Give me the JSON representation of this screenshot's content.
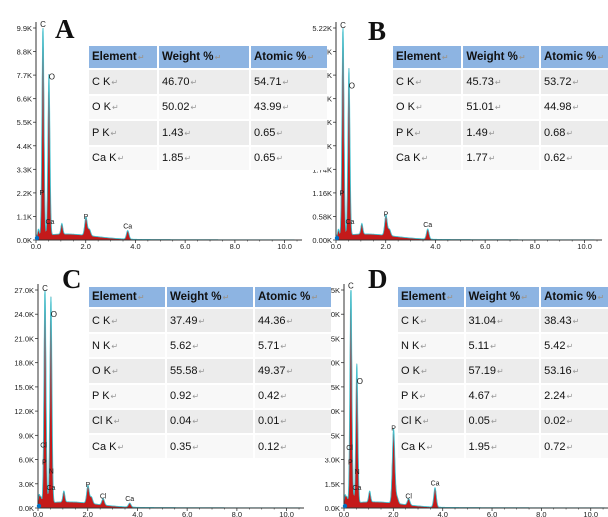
{
  "chart_data": [
    {
      "type": "line",
      "panel_label": "A",
      "xlabel": "",
      "ylabel": "",
      "xlim": [
        0,
        10.7
      ],
      "ylim": [
        0,
        9.9
      ],
      "x_ticks": [
        "0.0",
        "2.0",
        "4.0",
        "6.0",
        "8.0",
        "10.0"
      ],
      "y_ticks": [
        "0.0K",
        "1.1K",
        "2.2K",
        "3.3K",
        "4.4K",
        "5.5K",
        "6.6K",
        "7.7K",
        "8.8K",
        "9.9K"
      ],
      "peaks": [
        {
          "label": "C",
          "x": 0.28,
          "y": 9.8
        },
        {
          "label": "O",
          "x": 0.52,
          "y": 7.5
        },
        {
          "label": "P",
          "x": 2.01,
          "y": 0.85
        },
        {
          "label": "Ca",
          "x": 3.69,
          "y": 0.4
        }
      ],
      "minor_peak_labels": [
        {
          "label": "P",
          "x": 0.1,
          "y": 2.1
        },
        {
          "label": "Ca",
          "x": 0.34,
          "y": 0.75
        }
      ],
      "table": {
        "headers": [
          "Element",
          "Weight %",
          "Atomic %"
        ],
        "rows": [
          [
            "C K",
            "46.70",
            "54.71"
          ],
          [
            "O K",
            "50.02",
            "43.99"
          ],
          [
            "P K",
            "1.43",
            "0.65"
          ],
          [
            "Ca K",
            "1.85",
            "0.65"
          ]
        ]
      }
    },
    {
      "type": "line",
      "panel_label": "B",
      "xlabel": "",
      "ylabel": "",
      "xlim": [
        0,
        10.7
      ],
      "ylim": [
        0,
        5.22
      ],
      "x_ticks": [
        "0.0",
        "2.0",
        "4.0",
        "6.0",
        "8.0",
        "10.0"
      ],
      "y_ticks": [
        "0.00K",
        "0.58K",
        "1.16K",
        "1.74K",
        "2.32K",
        "2.90K",
        "3.48K",
        "4.06K",
        "4.64K",
        "5.22K"
      ],
      "peaks": [
        {
          "label": "C",
          "x": 0.28,
          "y": 5.15
        },
        {
          "label": "O",
          "x": 0.52,
          "y": 4.1
        },
        {
          "label": "P",
          "x": 2.01,
          "y": 0.5
        },
        {
          "label": "Ca",
          "x": 3.69,
          "y": 0.25
        }
      ],
      "minor_peak_labels": [
        {
          "label": "P",
          "x": 0.1,
          "y": 1.1
        },
        {
          "label": "Ca",
          "x": 0.34,
          "y": 0.4
        }
      ],
      "table": {
        "headers": [
          "Element",
          "Weight %",
          "Atomic %"
        ],
        "rows": [
          [
            "C K",
            "45.73",
            "53.72"
          ],
          [
            "O K",
            "51.01",
            "44.98"
          ],
          [
            "P K",
            "1.49",
            "0.68"
          ],
          [
            "Ca K",
            "1.77",
            "0.62"
          ]
        ]
      }
    },
    {
      "type": "line",
      "panel_label": "C",
      "xlabel": "",
      "ylabel": "",
      "xlim": [
        0,
        10.7
      ],
      "ylim": [
        0,
        27
      ],
      "x_ticks": [
        "0.0",
        "2.0",
        "4.0",
        "6.0",
        "8.0",
        "10.0"
      ],
      "y_ticks": [
        "0.0K",
        "3.0K",
        "6.0K",
        "9.0K",
        "12.0K",
        "15.0K",
        "18.0K",
        "21.0K",
        "24.0K",
        "27.0K"
      ],
      "peaks": [
        {
          "label": "C",
          "x": 0.28,
          "y": 26.5
        },
        {
          "label": "O",
          "x": 0.52,
          "y": 25.5
        },
        {
          "label": "P",
          "x": 2.01,
          "y": 2.2
        },
        {
          "label": "Cl",
          "x": 2.62,
          "y": 0.8
        },
        {
          "label": "Ca",
          "x": 3.69,
          "y": 0.5
        }
      ],
      "minor_peak_labels": [
        {
          "label": "Cl",
          "x": 0.05,
          "y": 7.5
        },
        {
          "label": "P",
          "x": 0.12,
          "y": 5.4
        },
        {
          "label": "N",
          "x": 0.39,
          "y": 4.3
        },
        {
          "label": "Ca",
          "x": 0.3,
          "y": 2.2
        }
      ],
      "table": {
        "headers": [
          "Element",
          "Weight %",
          "Atomic %"
        ],
        "rows": [
          [
            "C K",
            "37.49",
            "44.36"
          ],
          [
            "N K",
            "5.62",
            "5.71"
          ],
          [
            "O K",
            "55.58",
            "49.37"
          ],
          [
            "P K",
            "0.92",
            "0.42"
          ],
          [
            "Cl K",
            "0.04",
            "0.01"
          ],
          [
            "Ca K",
            "0.35",
            "0.12"
          ]
        ]
      }
    },
    {
      "type": "line",
      "panel_label": "D",
      "xlabel": "",
      "ylabel": "",
      "xlim": [
        0,
        10.7
      ],
      "ylim": [
        0,
        13.5
      ],
      "x_ticks": [
        "0.0",
        "2.0",
        "4.0",
        "6.0",
        "8.0",
        "10.0"
      ],
      "y_ticks": [
        "0.0K",
        "1.5K",
        "3.0K",
        "4.5K",
        "6.0K",
        "7.5K",
        "9.0K",
        "10.5K",
        "12.0K",
        "13.5K"
      ],
      "peaks": [
        {
          "label": "C",
          "x": 0.28,
          "y": 13.4
        },
        {
          "label": "O",
          "x": 0.52,
          "y": 8.6
        },
        {
          "label": "P",
          "x": 2.01,
          "y": 4.6
        },
        {
          "label": "Cl",
          "x": 2.62,
          "y": 0.4
        },
        {
          "label": "Ca",
          "x": 3.69,
          "y": 1.2
        }
      ],
      "minor_peak_labels": [
        {
          "label": "Cl",
          "x": 0.05,
          "y": 3.6
        },
        {
          "label": "P",
          "x": 0.12,
          "y": 2.7
        },
        {
          "label": "N",
          "x": 0.39,
          "y": 2.1
        },
        {
          "label": "Ca",
          "x": 0.3,
          "y": 1.1
        }
      ],
      "table": {
        "headers": [
          "Element",
          "Weight %",
          "Atomic %"
        ],
        "rows": [
          [
            "C K",
            "31.04",
            "38.43"
          ],
          [
            "N K",
            "5.11",
            "5.42"
          ],
          [
            "O K",
            "57.19",
            "53.16"
          ],
          [
            "P K",
            "4.67",
            "2.24"
          ],
          [
            "Cl K",
            "0.05",
            "0.02"
          ],
          [
            "Ca K",
            "1.95",
            "0.72"
          ]
        ]
      }
    }
  ],
  "colors": {
    "spectrum_fill": "#c41a1a",
    "spectrum_edge": "#7a0c0c",
    "peak_trace": "#38d8e8",
    "axis": "#333333",
    "peak_label": "#1a1a1a",
    "table_header": "#8db4e2",
    "marker": "#0070c0"
  }
}
